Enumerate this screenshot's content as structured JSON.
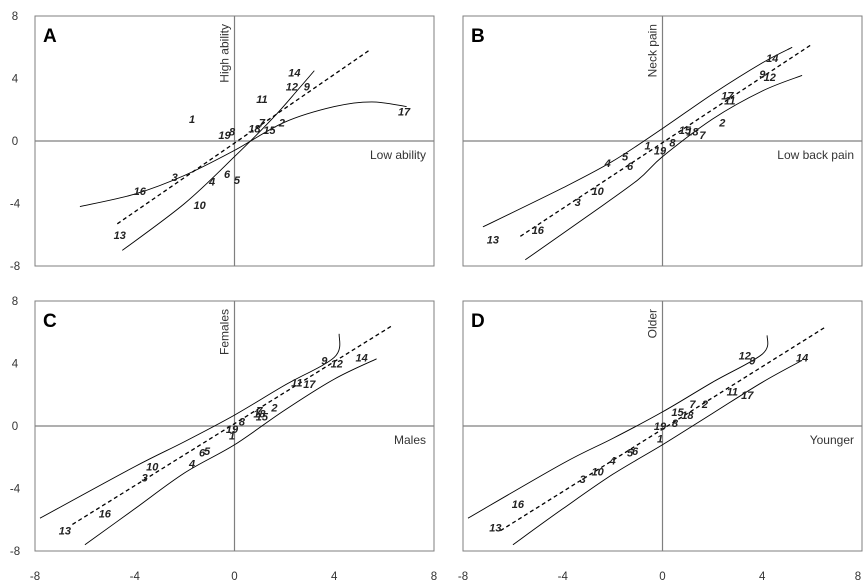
{
  "chart_data": [
    {
      "type": "scatter",
      "panel": "A",
      "xlim": [
        -8,
        8
      ],
      "ylim": [
        -8,
        8
      ],
      "xticks": [
        "-8",
        "-4",
        "0",
        "4",
        "8"
      ],
      "yticks": [
        "8",
        "4",
        "0",
        "-4",
        "-8"
      ],
      "x_axis_label": "Low ability",
      "y_axis_label": "High ability",
      "points": [
        {
          "label": "1",
          "x": -1.7,
          "y": 1.4
        },
        {
          "label": "2",
          "x": 1.9,
          "y": 1.2
        },
        {
          "label": "3",
          "x": -2.4,
          "y": -2.3
        },
        {
          "label": "4",
          "x": -0.9,
          "y": -2.6
        },
        {
          "label": "5",
          "x": 0.1,
          "y": -2.5
        },
        {
          "label": "6",
          "x": -0.3,
          "y": -2.1
        },
        {
          "label": "7",
          "x": 1.1,
          "y": 1.2
        },
        {
          "label": "8",
          "x": -0.1,
          "y": 0.6
        },
        {
          "label": "10",
          "x": -1.4,
          "y": -4.1
        },
        {
          "label": "11",
          "x": 1.1,
          "y": 2.7
        },
        {
          "label": "12",
          "x": 2.3,
          "y": 3.5
        },
        {
          "label": "9",
          "x": 2.9,
          "y": 3.5
        },
        {
          "label": "13",
          "x": -4.6,
          "y": -6.0
        },
        {
          "label": "14",
          "x": 2.4,
          "y": 4.4
        },
        {
          "label": "15",
          "x": 1.4,
          "y": 0.7
        },
        {
          "label": "16",
          "x": -3.8,
          "y": -3.2
        },
        {
          "label": "17",
          "x": 6.8,
          "y": 1.9
        },
        {
          "label": "18",
          "x": 0.8,
          "y": 0.8
        },
        {
          "label": "19",
          "x": -0.4,
          "y": 0.4
        }
      ],
      "fit_line": [
        [
          -4.7,
          -5.3
        ],
        [
          5.4,
          5.8
        ]
      ],
      "band_upper": [
        [
          -4.5,
          -7.0
        ],
        [
          -2,
          -4.0
        ],
        [
          0,
          -1.0
        ],
        [
          1.5,
          1.4
        ],
        [
          2.5,
          3.2
        ],
        [
          3.2,
          4.5
        ]
      ],
      "band_lower": [
        [
          -6.2,
          -4.2
        ],
        [
          -4,
          -3.4
        ],
        [
          -2,
          -2.2
        ],
        [
          0,
          -0.6
        ],
        [
          2,
          1.2
        ],
        [
          4,
          2.2
        ],
        [
          5.5,
          2.5
        ],
        [
          6.9,
          2.2
        ]
      ]
    },
    {
      "type": "scatter",
      "panel": "B",
      "xlim": [
        -8,
        8
      ],
      "ylim": [
        -8,
        8
      ],
      "xticks": [
        "-8",
        "-4",
        "0",
        "4",
        "8"
      ],
      "yticks": [
        "8",
        "4",
        "0",
        "-4",
        "-8"
      ],
      "x_axis_label": "Low back pain",
      "y_axis_label": "Neck pain",
      "points": [
        {
          "label": "1",
          "x": -0.6,
          "y": -0.3
        },
        {
          "label": "2",
          "x": 2.4,
          "y": 1.2
        },
        {
          "label": "3",
          "x": -3.4,
          "y": -3.9
        },
        {
          "label": "4",
          "x": -2.2,
          "y": -1.4
        },
        {
          "label": "5",
          "x": -1.5,
          "y": -1.0
        },
        {
          "label": "6",
          "x": -1.3,
          "y": -1.6
        },
        {
          "label": "7",
          "x": 1.6,
          "y": 0.4
        },
        {
          "label": "8",
          "x": 0.4,
          "y": -0.1
        },
        {
          "label": "9",
          "x": 4.0,
          "y": 4.3
        },
        {
          "label": "10",
          "x": -2.6,
          "y": -3.2
        },
        {
          "label": "11",
          "x": 2.7,
          "y": 2.6
        },
        {
          "label": "12",
          "x": 4.3,
          "y": 4.1
        },
        {
          "label": "13",
          "x": -6.8,
          "y": -6.3
        },
        {
          "label": "14",
          "x": 4.4,
          "y": 5.3
        },
        {
          "label": "15",
          "x": 0.9,
          "y": 0.7
        },
        {
          "label": "16",
          "x": -5.0,
          "y": -5.7
        },
        {
          "label": "17",
          "x": 2.6,
          "y": 2.9
        },
        {
          "label": "18",
          "x": 1.2,
          "y": 0.6
        },
        {
          "label": "19",
          "x": -0.1,
          "y": -0.6
        }
      ],
      "fit_line": [
        [
          -5.7,
          -6.1
        ],
        [
          6.0,
          6.2
        ]
      ],
      "band_upper": [
        [
          -7.2,
          -5.5
        ],
        [
          -4,
          -3.0
        ],
        [
          -2,
          -1.3
        ],
        [
          0,
          0.8
        ],
        [
          2,
          3.0
        ],
        [
          4,
          5.0
        ],
        [
          5.2,
          6.0
        ]
      ],
      "band_lower": [
        [
          -5.5,
          -7.6
        ],
        [
          -3,
          -4.8
        ],
        [
          -1,
          -2.5
        ],
        [
          0,
          -1.0
        ],
        [
          2,
          1.4
        ],
        [
          4,
          3.2
        ],
        [
          5.6,
          4.2
        ]
      ]
    },
    {
      "type": "scatter",
      "panel": "C",
      "xlim": [
        -8,
        8
      ],
      "ylim": [
        -8,
        8
      ],
      "xticks": [
        "-8",
        "-4",
        "0",
        "4",
        "8"
      ],
      "yticks": [
        "8",
        "4",
        "0",
        "-4",
        "-8"
      ],
      "x_axis_label": "Males",
      "y_axis_label": "Females",
      "points": [
        {
          "label": "1",
          "x": -0.1,
          "y": -0.6
        },
        {
          "label": "2",
          "x": 1.6,
          "y": 1.2
        },
        {
          "label": "3",
          "x": -3.6,
          "y": -3.3
        },
        {
          "label": "4",
          "x": -1.7,
          "y": -2.4
        },
        {
          "label": "5",
          "x": -1.1,
          "y": -1.6
        },
        {
          "label": "6",
          "x": -1.3,
          "y": -1.7
        },
        {
          "label": "7",
          "x": 1.0,
          "y": 1.0
        },
        {
          "label": "8",
          "x": 0.3,
          "y": 0.3
        },
        {
          "label": "9",
          "x": 3.6,
          "y": 4.2
        },
        {
          "label": "10",
          "x": -3.3,
          "y": -2.6
        },
        {
          "label": "11",
          "x": 2.5,
          "y": 2.8
        },
        {
          "label": "12",
          "x": 4.1,
          "y": 4.0
        },
        {
          "label": "13",
          "x": -6.8,
          "y": -6.7
        },
        {
          "label": "14",
          "x": 5.1,
          "y": 4.4
        },
        {
          "label": "15",
          "x": 1.1,
          "y": 0.6
        },
        {
          "label": "16",
          "x": -5.2,
          "y": -5.6
        },
        {
          "label": "17",
          "x": 3.0,
          "y": 2.7
        },
        {
          "label": "18",
          "x": 1.0,
          "y": 0.8
        },
        {
          "label": "19",
          "x": -0.1,
          "y": -0.2
        }
      ],
      "fit_line": [
        [
          -6.5,
          -6.3
        ],
        [
          6.3,
          6.4
        ]
      ],
      "band_upper": [
        [
          -7.8,
          -5.9
        ],
        [
          -4,
          -2.6
        ],
        [
          -2,
          -1.0
        ],
        [
          0,
          0.7
        ],
        [
          2,
          2.6
        ],
        [
          4,
          4.4
        ],
        [
          4.2,
          5.9
        ]
      ],
      "band_lower": [
        [
          -6.0,
          -7.6
        ],
        [
          -4,
          -5.3
        ],
        [
          -2,
          -3.0
        ],
        [
          0,
          -1.2
        ],
        [
          2,
          1.0
        ],
        [
          4,
          3.0
        ],
        [
          5.7,
          4.3
        ]
      ]
    },
    {
      "type": "scatter",
      "panel": "D",
      "xlim": [
        -8,
        8
      ],
      "ylim": [
        -8,
        8
      ],
      "xticks": [
        "-8",
        "-4",
        "0",
        "4",
        "8"
      ],
      "yticks": [
        "8",
        "4",
        "0",
        "-4",
        "-8"
      ],
      "x_axis_label": "Younger",
      "y_axis_label": "Older",
      "points": [
        {
          "label": "1",
          "x": -0.1,
          "y": -0.8
        },
        {
          "label": "2",
          "x": 1.7,
          "y": 1.4
        },
        {
          "label": "3",
          "x": -3.2,
          "y": -3.4
        },
        {
          "label": "4",
          "x": -2.0,
          "y": -2.2
        },
        {
          "label": "5",
          "x": -1.3,
          "y": -1.7
        },
        {
          "label": "6",
          "x": -1.1,
          "y": -1.6
        },
        {
          "label": "7",
          "x": 1.2,
          "y": 1.4
        },
        {
          "label": "8",
          "x": 0.5,
          "y": 0.2
        },
        {
          "label": "9",
          "x": 3.6,
          "y": 4.2
        },
        {
          "label": "10",
          "x": -2.6,
          "y": -2.9
        },
        {
          "label": "11",
          "x": 2.8,
          "y": 2.2
        },
        {
          "label": "12",
          "x": 3.3,
          "y": 4.5
        },
        {
          "label": "13",
          "x": -6.7,
          "y": -6.5
        },
        {
          "label": "14",
          "x": 5.6,
          "y": 4.4
        },
        {
          "label": "15",
          "x": 0.6,
          "y": 0.9
        },
        {
          "label": "16",
          "x": -5.8,
          "y": -5.0
        },
        {
          "label": "17",
          "x": 3.4,
          "y": 2.0
        },
        {
          "label": "18",
          "x": 1.0,
          "y": 0.7
        },
        {
          "label": "19",
          "x": -0.1,
          "y": 0.0
        }
      ],
      "fit_line": [
        [
          -6.5,
          -6.7
        ],
        [
          6.5,
          6.3
        ]
      ],
      "band_upper": [
        [
          -7.8,
          -5.9
        ],
        [
          -4,
          -2.4
        ],
        [
          -2,
          -0.8
        ],
        [
          0,
          0.9
        ],
        [
          2,
          2.8
        ],
        [
          4,
          4.6
        ],
        [
          4.2,
          5.8
        ]
      ],
      "band_lower": [
        [
          -6.0,
          -7.6
        ],
        [
          -4,
          -5.3
        ],
        [
          -2,
          -3.1
        ],
        [
          0,
          -1.2
        ],
        [
          2,
          0.8
        ],
        [
          4,
          2.8
        ],
        [
          5.6,
          4.2
        ]
      ]
    }
  ]
}
